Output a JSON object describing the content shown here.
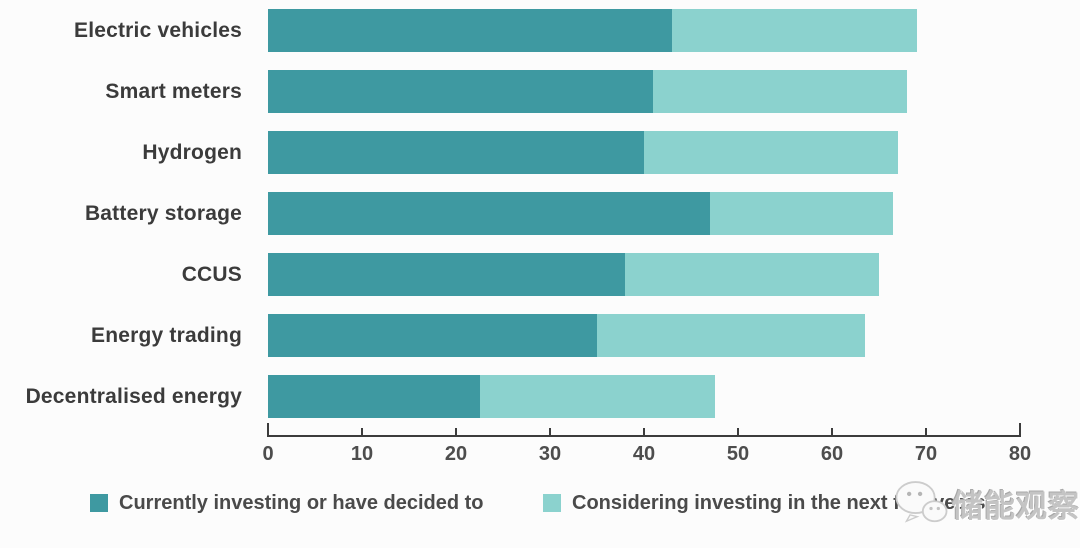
{
  "watermark": {
    "text": "储能观察",
    "logo": "wechat-logo"
  },
  "legend": {
    "current_label": "Currently investing or have decided to",
    "considering_label": "Considering investing in the next five years"
  },
  "colors": {
    "current": "#3e99a1",
    "considering": "#8bd2ce",
    "axis": "#3c3c3c",
    "label_text": "#3b3b3b",
    "tick_text": "#4d4d4d",
    "background": "#fcfcfc"
  },
  "chart_data": {
    "type": "bar",
    "orientation": "horizontal",
    "stacked": true,
    "title": "",
    "xlabel": "",
    "ylabel": "",
    "categories": [
      "Electric vehicles",
      "Smart meters",
      "Hydrogen",
      "Battery storage",
      "CCUS",
      "Energy trading",
      "Decentralised energy"
    ],
    "series": [
      {
        "name": "Currently investing or have decided to",
        "color": "#3e99a1",
        "values": [
          43,
          41,
          40,
          47,
          38,
          35,
          22.5
        ]
      },
      {
        "name": "Considering investing in the next five years",
        "color": "#8bd2ce",
        "values": [
          26,
          27,
          27,
          19.5,
          27,
          28.5,
          25
        ]
      }
    ],
    "stack_totals": [
      69,
      68,
      67,
      66.5,
      65,
      63.5,
      47.5
    ],
    "xlim": [
      0,
      80
    ],
    "xticks": [
      0,
      10,
      20,
      30,
      40,
      50,
      60,
      70,
      80
    ],
    "grid": false,
    "legend_position": "bottom"
  }
}
